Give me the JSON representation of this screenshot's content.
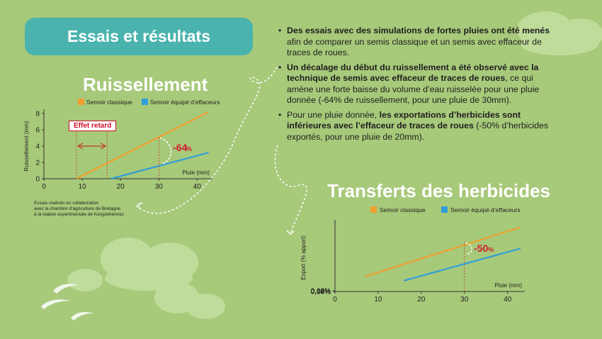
{
  "title": "Essais et résultats",
  "colors": {
    "semoir_classique": "#f0a030",
    "semoir_effaceurs": "#2f9ed8",
    "highlight": "#d0202e",
    "title_bg": "#4ab3ad",
    "background": "#a7c97a"
  },
  "bullets": [
    {
      "bold": "Des essais avec des simulations de fortes pluies ont été menés",
      "rest": "afin de comparer un semis classique et un semis avec effaceur de traces de roues."
    },
    {
      "bold": "Un décalage du début du ruissellement a été observé avec la technique de semis avec effaceur de traces de roues",
      "rest": ", ce qui amène une forte baisse du volume d’eau ruisselée pour une pluie donnée (-64% de ruissellement, pour une pluie de 30mm)."
    },
    {
      "pre": "Pour une pluie donnée, ",
      "bold": "les exportations d’herbicides sont inférieures avec l’effaceur de traces de roues",
      "rest": " (-50% d’herbicides exportés, pour une pluie de 20mm)."
    }
  ],
  "note": [
    "Essais réalisés en collaboration",
    "avec la chambre d’agriculture de Bretagne",
    "à la station expérimentale de Kerguehennec"
  ],
  "chart_data": [
    {
      "type": "line",
      "title": "Ruissellement",
      "xlabel": "Pluie (mm)",
      "ylabel": "Ruissellement (mm)",
      "xlim": [
        0,
        44
      ],
      "ylim": [
        0,
        8
      ],
      "xticks": [
        "0",
        "10",
        "20",
        "30",
        "40"
      ],
      "yticks": [
        "0",
        "2",
        "4",
        "6",
        "8"
      ],
      "series": [
        {
          "name": "Semoir classique",
          "x": [
            8.5,
            43
          ],
          "y": [
            0,
            8.2
          ]
        },
        {
          "name": "Semoir équipé d’effaceurs",
          "x": [
            17.5,
            43
          ],
          "y": [
            0,
            3.2
          ]
        }
      ],
      "annotations": {
        "delay_label": "Effet retard",
        "reduction_label": "-64",
        "reduction_unit": "%"
      }
    },
    {
      "type": "line",
      "title": "Transferts des herbicides",
      "xlabel": "Pluie (mm)",
      "ylabel": "Export (% apport)",
      "xlim": [
        0,
        44
      ],
      "ylim": [
        0,
        0.13
      ],
      "xticks": [
        "0",
        "10",
        "20",
        "30",
        "40"
      ],
      "yticks": [
        "0,00%",
        "0,04%",
        "0,08%",
        "0,12%"
      ],
      "series": [
        {
          "name": "Semoir classique",
          "x": [
            7,
            43
          ],
          "y": [
            0.029,
            0.124
          ]
        },
        {
          "name": "Semoir équipé d’effaceurs",
          "x": [
            16,
            43
          ],
          "y": [
            0.021,
            0.083
          ]
        }
      ],
      "annotations": {
        "reduction_label": "-50",
        "reduction_unit": "%"
      }
    }
  ]
}
